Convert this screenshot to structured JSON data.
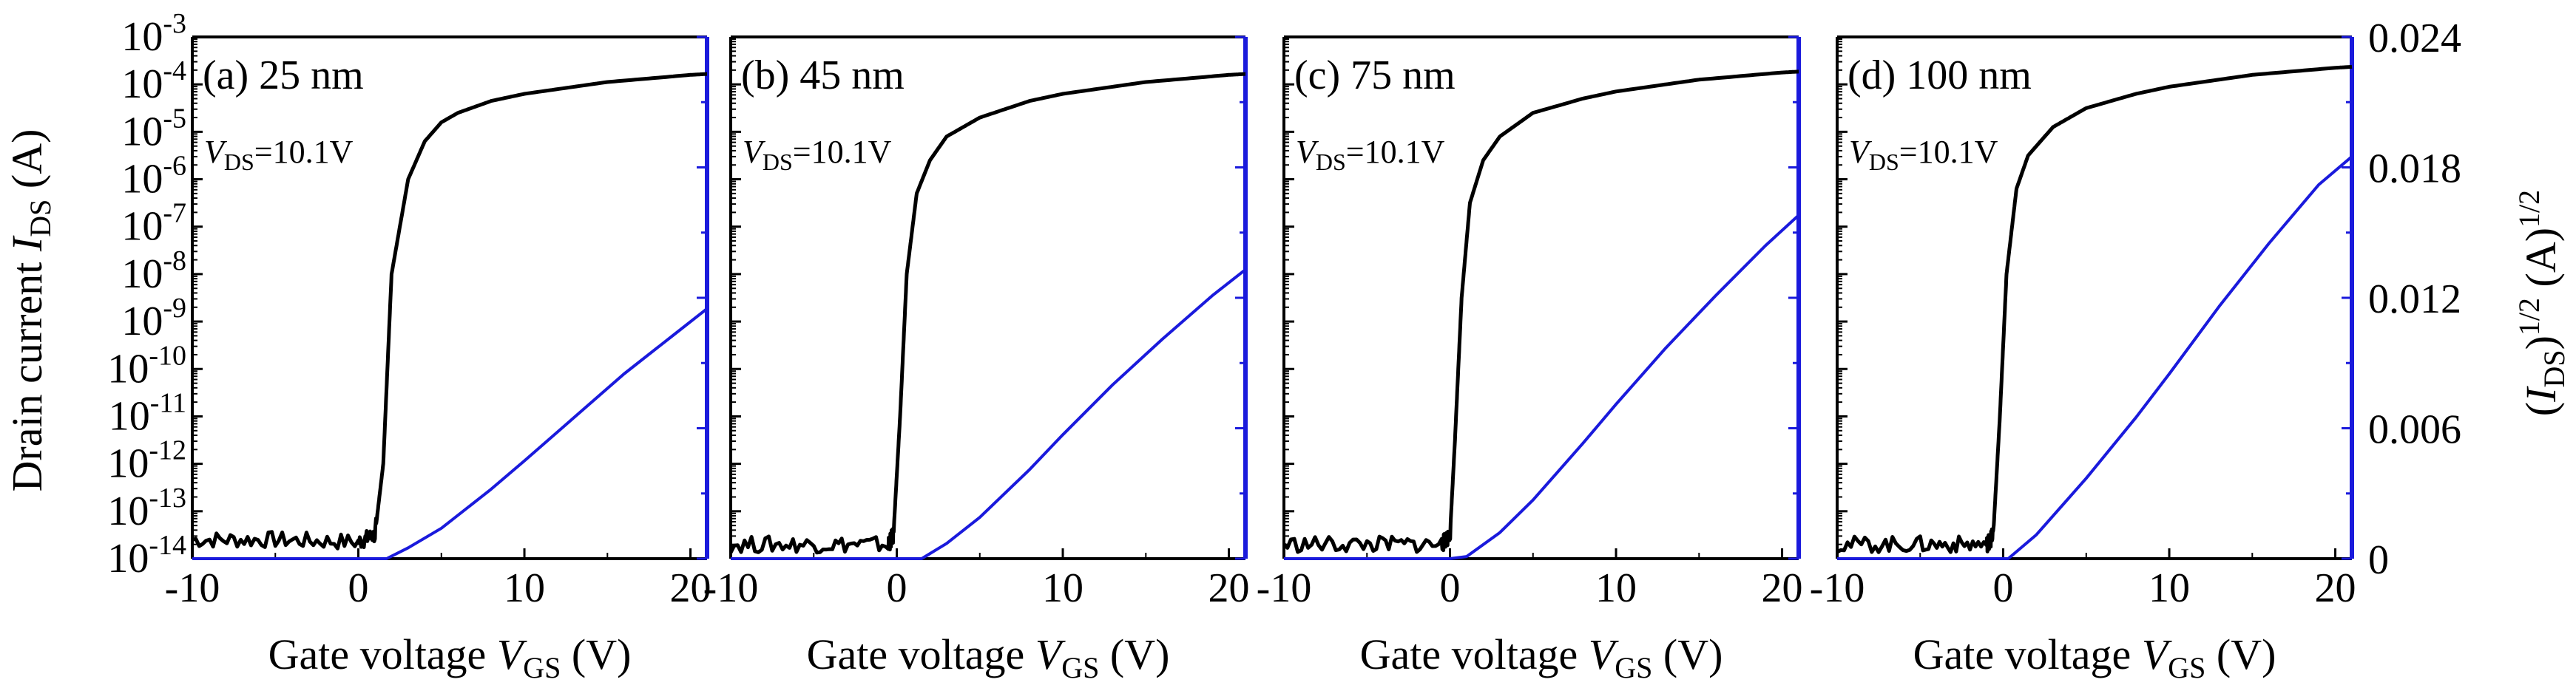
{
  "figure": {
    "left_axis_label": {
      "main": "Drain current ",
      "var": "I",
      "sub": "DS",
      "unit": " (A)"
    },
    "right_axis_label": {
      "open": "(",
      "var": "I",
      "sub": "DS",
      "close": ")",
      "sup1": "1/2",
      "unit": " (A)",
      "sup2": "1/2"
    },
    "x_axis_label": {
      "main": "Gate voltage  ",
      "var": "V",
      "sub": "GS",
      "unit": " (V)"
    },
    "vds_text": {
      "var": "V",
      "sub": "DS",
      "value": "=10.1V"
    },
    "colors": {
      "log_curve": "#000000",
      "sqrt_curve": "#1a1adc",
      "right_axis": "#1a1adc",
      "frame": "#000000"
    }
  },
  "chart_data": [
    {
      "type": "line",
      "title": "(a) 25 nm",
      "xlim": [
        -10,
        21
      ],
      "x_ticks": [
        "-10",
        "0",
        "10",
        "20"
      ],
      "y_left": {
        "scale": "log",
        "lim_exponent": [
          -14,
          -3
        ],
        "tick_labels": [
          "10-3",
          "10-4",
          "10-5",
          "10-6",
          "10-7",
          "10-8",
          "10-9",
          "10-10",
          "10-11",
          "10-12",
          "10-13",
          "10-14"
        ]
      },
      "y_right": {
        "lim": [
          0,
          0.024
        ],
        "tick_labels": []
      },
      "series": [
        {
          "name": "log I_DS",
          "axis": "left",
          "x": [
            -10,
            -5,
            0,
            1.0,
            1.5,
            2.0,
            3.0,
            4.0,
            5.0,
            6.0,
            8.0,
            10.0,
            15.0,
            20.0,
            21.0
          ],
          "log10_y": [
            -13.6,
            -13.6,
            -13.65,
            -13.5,
            -12.0,
            -8.0,
            -6.0,
            -5.2,
            -4.8,
            -4.6,
            -4.35,
            -4.2,
            -3.95,
            -3.8,
            -3.78
          ]
        },
        {
          "name": "sqrt I_DS",
          "axis": "right",
          "x": [
            -10,
            0,
            1.7,
            3.0,
            5.0,
            8.0,
            10.0,
            13.0,
            16.0,
            19.0,
            21.0
          ],
          "y": [
            0,
            0,
            0,
            0.0005,
            0.0014,
            0.0032,
            0.0045,
            0.0065,
            0.0085,
            0.0103,
            0.0115
          ]
        }
      ]
    },
    {
      "type": "line",
      "title": "(b) 45 nm",
      "xlim": [
        -10,
        21
      ],
      "x_ticks": [
        "-10",
        "0",
        "10",
        "20"
      ],
      "y_left": {
        "scale": "log",
        "lim_exponent": [
          -14,
          -3
        ],
        "tick_labels": []
      },
      "y_right": {
        "lim": [
          0,
          0.024
        ],
        "tick_labels": []
      },
      "series": [
        {
          "name": "log I_DS",
          "axis": "left",
          "x": [
            -10,
            -5,
            -0.5,
            -0.2,
            0.2,
            0.6,
            1.2,
            2.0,
            3.0,
            5.0,
            8.0,
            10.0,
            15.0,
            20.0,
            21.0
          ],
          "log10_y": [
            -13.7,
            -13.7,
            -13.7,
            -13.5,
            -11.0,
            -8.0,
            -6.3,
            -5.6,
            -5.1,
            -4.7,
            -4.35,
            -4.2,
            -3.95,
            -3.8,
            -3.78
          ]
        },
        {
          "name": "sqrt I_DS",
          "axis": "right",
          "x": [
            -10,
            0,
            1.5,
            3.0,
            5.0,
            8.0,
            10.0,
            13.0,
            16.0,
            19.0,
            21.0
          ],
          "y": [
            0,
            0,
            0,
            0.0007,
            0.0019,
            0.0041,
            0.0057,
            0.008,
            0.0101,
            0.0121,
            0.0133
          ]
        }
      ]
    },
    {
      "type": "line",
      "title": "(c) 75 nm",
      "xlim": [
        -10,
        21
      ],
      "x_ticks": [
        "-10",
        "0",
        "10",
        "20"
      ],
      "y_left": {
        "scale": "log",
        "lim_exponent": [
          -14,
          -3
        ],
        "tick_labels": []
      },
      "y_right": {
        "lim": [
          0,
          0.024
        ],
        "tick_labels": []
      },
      "series": [
        {
          "name": "log I_DS",
          "axis": "left",
          "x": [
            -10,
            -5,
            -0.5,
            0.0,
            0.3,
            0.7,
            1.2,
            2.0,
            3.0,
            5.0,
            8.0,
            10.0,
            15.0,
            20.0,
            21.0
          ],
          "log10_y": [
            -13.7,
            -13.7,
            -13.7,
            -13.5,
            -11.5,
            -8.5,
            -6.5,
            -5.6,
            -5.1,
            -4.6,
            -4.3,
            -4.15,
            -3.9,
            -3.75,
            -3.73
          ]
        },
        {
          "name": "sqrt I_DS",
          "axis": "right",
          "x": [
            -10,
            0,
            1.0,
            3.0,
            5.0,
            8.0,
            10.0,
            13.0,
            16.0,
            19.0,
            21.0
          ],
          "y": [
            0,
            0,
            0.0001,
            0.0012,
            0.0027,
            0.0053,
            0.0071,
            0.0097,
            0.0121,
            0.0144,
            0.0158
          ]
        }
      ]
    },
    {
      "type": "line",
      "title": "(d) 100 nm",
      "xlim": [
        -10,
        21
      ],
      "x_ticks": [
        "-10",
        "0",
        "10",
        "20"
      ],
      "y_left": {
        "scale": "log",
        "lim_exponent": [
          -14,
          -3
        ],
        "tick_labels": []
      },
      "y_right": {
        "lim": [
          0,
          0.024
        ],
        "tick_labels": [
          "0.024",
          "0.018",
          "0.012",
          "0.006",
          "0"
        ]
      },
      "series": [
        {
          "name": "log I_DS",
          "axis": "left",
          "x": [
            -10,
            -5,
            -1.0,
            -0.6,
            -0.2,
            0.2,
            0.8,
            1.5,
            3.0,
            5.0,
            8.0,
            10.0,
            15.0,
            20.0,
            21.0
          ],
          "log10_y": [
            -13.7,
            -13.7,
            -13.7,
            -13.5,
            -11.0,
            -8.0,
            -6.2,
            -5.5,
            -4.9,
            -4.5,
            -4.2,
            -4.05,
            -3.8,
            -3.65,
            -3.63
          ]
        },
        {
          "name": "sqrt I_DS",
          "axis": "right",
          "x": [
            -10,
            0,
            0.3,
            2.0,
            5.0,
            8.0,
            10.0,
            13.0,
            16.0,
            19.0,
            21.0
          ],
          "y": [
            0,
            0,
            0,
            0.0011,
            0.0037,
            0.0065,
            0.0085,
            0.0116,
            0.0145,
            0.0172,
            0.0185
          ]
        }
      ]
    }
  ]
}
